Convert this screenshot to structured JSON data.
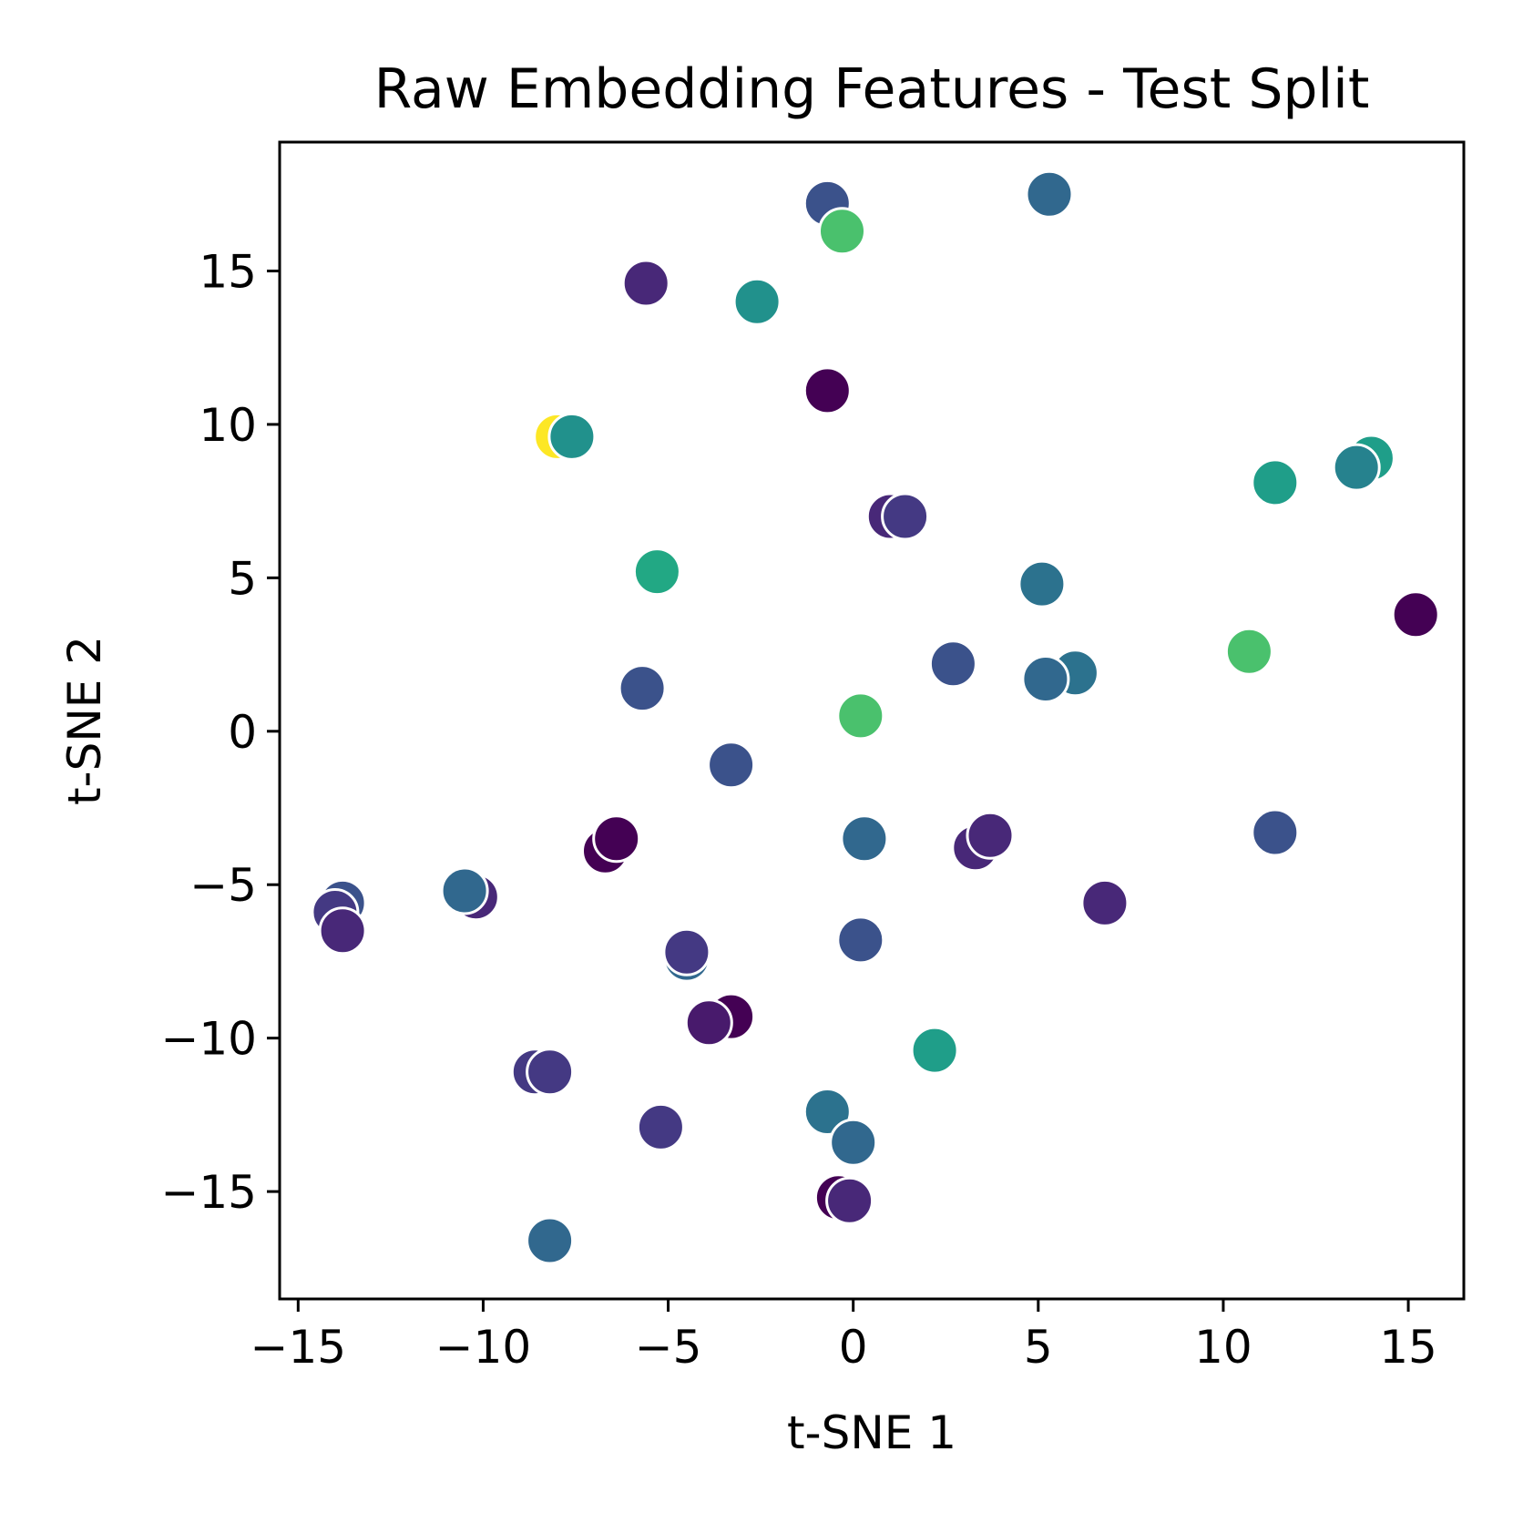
{
  "chart_data": {
    "type": "scatter",
    "title": "Raw Embedding Features - Test Split",
    "xlabel": "t-SNE 1",
    "ylabel": "t-SNE 2",
    "xlim": [
      -15.5,
      16.5
    ],
    "ylim": [
      -18.5,
      19.2
    ],
    "grid": false,
    "xticks": [
      -15,
      -10,
      -5,
      0,
      5,
      10,
      15
    ],
    "xtick_labels": [
      "−15",
      "−10",
      "−5",
      "0",
      "5",
      "10",
      "15"
    ],
    "yticks": [
      -15,
      -10,
      -5,
      0,
      5,
      10,
      15
    ],
    "ytick_labels": [
      "−15",
      "−10",
      "−5",
      "0",
      "5",
      "10",
      "15"
    ],
    "points": [
      {
        "x": -0.7,
        "y": 17.2,
        "color": "#3b528b"
      },
      {
        "x": -0.3,
        "y": 16.3,
        "color": "#4ac16d"
      },
      {
        "x": 5.3,
        "y": 17.5,
        "color": "#31688e"
      },
      {
        "x": -5.6,
        "y": 14.6,
        "color": "#482878"
      },
      {
        "x": -2.6,
        "y": 14.0,
        "color": "#21918c"
      },
      {
        "x": -0.7,
        "y": 11.1,
        "color": "#440154"
      },
      {
        "x": -8.0,
        "y": 9.6,
        "color": "#fde725"
      },
      {
        "x": -7.6,
        "y": 9.6,
        "color": "#21918c"
      },
      {
        "x": 14.0,
        "y": 8.9,
        "color": "#1f9e89"
      },
      {
        "x": 13.6,
        "y": 8.6,
        "color": "#26828e"
      },
      {
        "x": 11.4,
        "y": 8.1,
        "color": "#1f9e89"
      },
      {
        "x": 1.0,
        "y": 7.0,
        "color": "#482878"
      },
      {
        "x": 1.4,
        "y": 7.0,
        "color": "#443983"
      },
      {
        "x": -5.3,
        "y": 5.2,
        "color": "#22a884"
      },
      {
        "x": 5.1,
        "y": 4.8,
        "color": "#2c728e"
      },
      {
        "x": 15.2,
        "y": 3.8,
        "color": "#440154"
      },
      {
        "x": 10.7,
        "y": 2.6,
        "color": "#4ac16d"
      },
      {
        "x": 2.7,
        "y": 2.2,
        "color": "#3b528b"
      },
      {
        "x": 6.0,
        "y": 1.9,
        "color": "#2c728e"
      },
      {
        "x": 5.2,
        "y": 1.7,
        "color": "#31688e"
      },
      {
        "x": -5.7,
        "y": 1.4,
        "color": "#3b528b"
      },
      {
        "x": 0.2,
        "y": 0.5,
        "color": "#4ac16d"
      },
      {
        "x": -3.3,
        "y": -1.1,
        "color": "#3b528b"
      },
      {
        "x": -6.7,
        "y": -3.9,
        "color": "#440154"
      },
      {
        "x": -6.4,
        "y": -3.5,
        "color": "#440154"
      },
      {
        "x": 0.3,
        "y": -3.5,
        "color": "#31688e"
      },
      {
        "x": 3.3,
        "y": -3.8,
        "color": "#482878"
      },
      {
        "x": 3.7,
        "y": -3.4,
        "color": "#482878"
      },
      {
        "x": 11.4,
        "y": -3.3,
        "color": "#3b528b"
      },
      {
        "x": -13.8,
        "y": -5.6,
        "color": "#3b528b"
      },
      {
        "x": -14.0,
        "y": -5.9,
        "color": "#443983"
      },
      {
        "x": -13.8,
        "y": -6.5,
        "color": "#482878"
      },
      {
        "x": -10.2,
        "y": -5.4,
        "color": "#482878"
      },
      {
        "x": -10.5,
        "y": -5.2,
        "color": "#31688e"
      },
      {
        "x": 6.8,
        "y": -5.6,
        "color": "#482878"
      },
      {
        "x": -4.5,
        "y": -7.4,
        "color": "#31688e"
      },
      {
        "x": -4.5,
        "y": -7.2,
        "color": "#443983"
      },
      {
        "x": 0.2,
        "y": -6.8,
        "color": "#3b528b"
      },
      {
        "x": -3.3,
        "y": -9.3,
        "color": "#440154"
      },
      {
        "x": -3.9,
        "y": -9.5,
        "color": "#481a6c"
      },
      {
        "x": 2.2,
        "y": -10.4,
        "color": "#1f9e89"
      },
      {
        "x": -8.6,
        "y": -11.1,
        "color": "#443983"
      },
      {
        "x": -8.2,
        "y": -11.1,
        "color": "#443983"
      },
      {
        "x": -0.7,
        "y": -12.4,
        "color": "#2c728e"
      },
      {
        "x": -5.2,
        "y": -12.9,
        "color": "#443983"
      },
      {
        "x": 0.0,
        "y": -13.4,
        "color": "#31688e"
      },
      {
        "x": -0.4,
        "y": -15.2,
        "color": "#440154"
      },
      {
        "x": -0.1,
        "y": -15.3,
        "color": "#482878"
      },
      {
        "x": -8.2,
        "y": -16.6,
        "color": "#31688e"
      }
    ]
  }
}
